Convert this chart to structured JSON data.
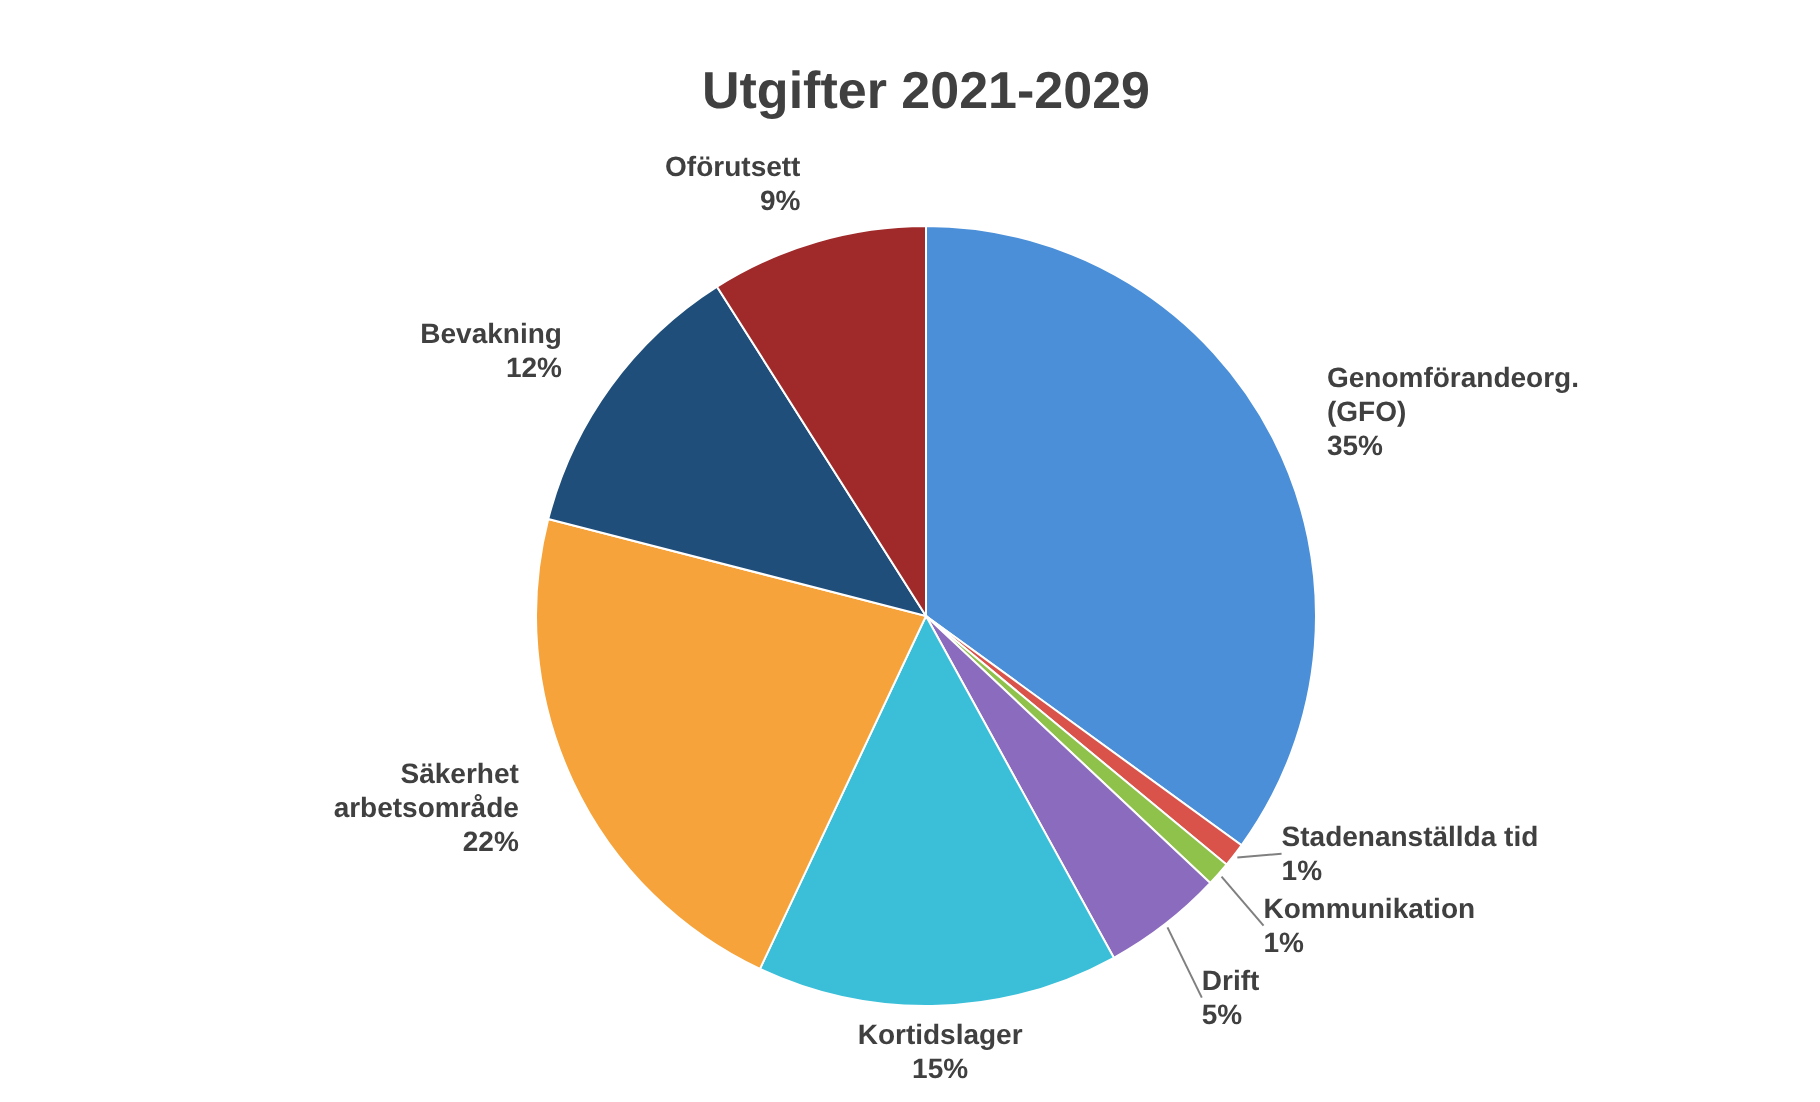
{
  "chart_data": {
    "type": "pie",
    "title": "Utgifter 2021-2029",
    "categories": [
      "Genomförandeorg. (GFO)",
      "Stadenanställda tid",
      "Kommunikation",
      "Drift",
      "Kortidslager",
      "Säkerhet arbetsområde",
      "Bevakning",
      "Oförutsett"
    ],
    "values": [
      35,
      1,
      1,
      5,
      15,
      22,
      12,
      9
    ],
    "colors": [
      "#4a8fd8",
      "#d9534a",
      "#8fc24a",
      "#8b6bbd",
      "#3bbfd9",
      "#f5a33a",
      "#1f4e7a",
      "#a02a2a"
    ],
    "value_labels": [
      "35%",
      "1%",
      "1%",
      "5%",
      "15%",
      "22%",
      "12%",
      "9%"
    ]
  }
}
